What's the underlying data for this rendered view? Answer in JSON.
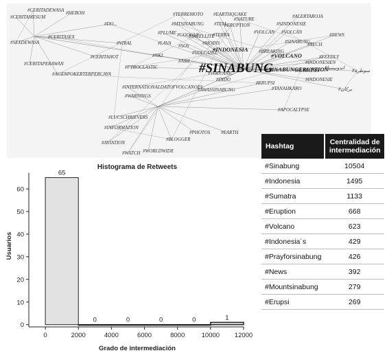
{
  "network": {
    "central_label": "#SINABUNG",
    "hub_labels": [
      "#INDONESIA",
      "#SINABUNGERUPTION",
      "#VOLCANO"
    ],
    "hashtags": [
      "#CERITADEWASA",
      "#HEBOH",
      "#CERITAMESUM",
      "#DO...",
      "#CERITASEX",
      "#SEXDEWASA",
      "#VIRAL",
      "#CERITAHOT",
      "#CERITAPERAWAN",
      "#AGENPOKERTERPERCAYA",
      "#TERREMOTO",
      "#EARTHQUAKE",
      "#MTSINABUNG",
      "#TEM...",
      "#ERUPTION",
      "#NATURE",
      "#ALERTAROJA",
      "#SINDONESIE",
      "#TECH",
      "#PLUME",
      "#GOOGLE",
      "#SATELLITE",
      "#TERRA",
      "#VOLCAN",
      "#VOLCÁN",
      "#NEWS",
      "#LAVA",
      "#MODIS",
      "#SINABUNG,",
      "#BREAKING",
      "#FEEDLY",
      "#INDONESIEN",
      "#SOS",
      "#NKI",
      "#ASH",
      "#VOLCANO,",
      "#PTROCLASTIC",
      "#VOLCANIC",
      "#DIDO",
      "#SUMATRA",
      "#INDONESIE",
      "#INTERNATIONALDATOFVOLCANOES",
      "#ERUPSI",
      "#TANAHKARO",
      "#WARNINGS",
      "#AWASSINABUNG",
      "#APOCALYPSE",
      "#LUCSCHRIEVERS",
      "#INFORMATION",
      "#PHOTOS",
      "#EARTH",
      "#BLOGGER",
      "#AVIATION",
      "#WORLDWIDE",
      "#WATCH",
      "#اندونيسيا",
      "#بركان",
      "#سوطرة"
    ]
  },
  "table": {
    "header_hashtag": "Hashtag",
    "header_value": "Centralidad de intermediación",
    "rows": [
      {
        "hashtag": "#Sinabung",
        "value": "10504"
      },
      {
        "hashtag": "#Indonesia",
        "value": "1495"
      },
      {
        "hashtag": "#Sumatra",
        "value": "1133"
      },
      {
        "hashtag": "#Eruption",
        "value": "668"
      },
      {
        "hashtag": "#Volcano",
        "value": "623"
      },
      {
        "hashtag": "#Indonesia´s",
        "value": "429"
      },
      {
        "hashtag": "#Prayforsinabung",
        "value": "426"
      },
      {
        "hashtag": "#News",
        "value": "392"
      },
      {
        "hashtag": "#Mountsinabung",
        "value": "279"
      },
      {
        "hashtag": "#Erupsi",
        "value": "269"
      }
    ]
  },
  "chart_data": {
    "type": "bar",
    "title": "Histograma de Retweets",
    "xlabel": "Grado de intermediación",
    "ylabel": "Usuarios",
    "bins": [
      [
        0,
        2000
      ],
      [
        2000,
        4000
      ],
      [
        4000,
        6000
      ],
      [
        6000,
        8000
      ],
      [
        8000,
        10000
      ],
      [
        10000,
        12000
      ]
    ],
    "values": [
      65,
      0,
      0,
      0,
      0,
      1
    ],
    "data_labels": [
      "65",
      "0",
      "0",
      "0",
      "0",
      "1"
    ],
    "xlim": [
      -1000,
      12000
    ],
    "ylim": [
      -1,
      67
    ],
    "xticks": [
      0,
      2000,
      4000,
      6000,
      8000,
      10000,
      12000
    ],
    "yticks": [
      0,
      10,
      20,
      30,
      40,
      50,
      60
    ],
    "bar_color": "#e2e2e2",
    "bar_edge": "#222222",
    "grid": false
  }
}
